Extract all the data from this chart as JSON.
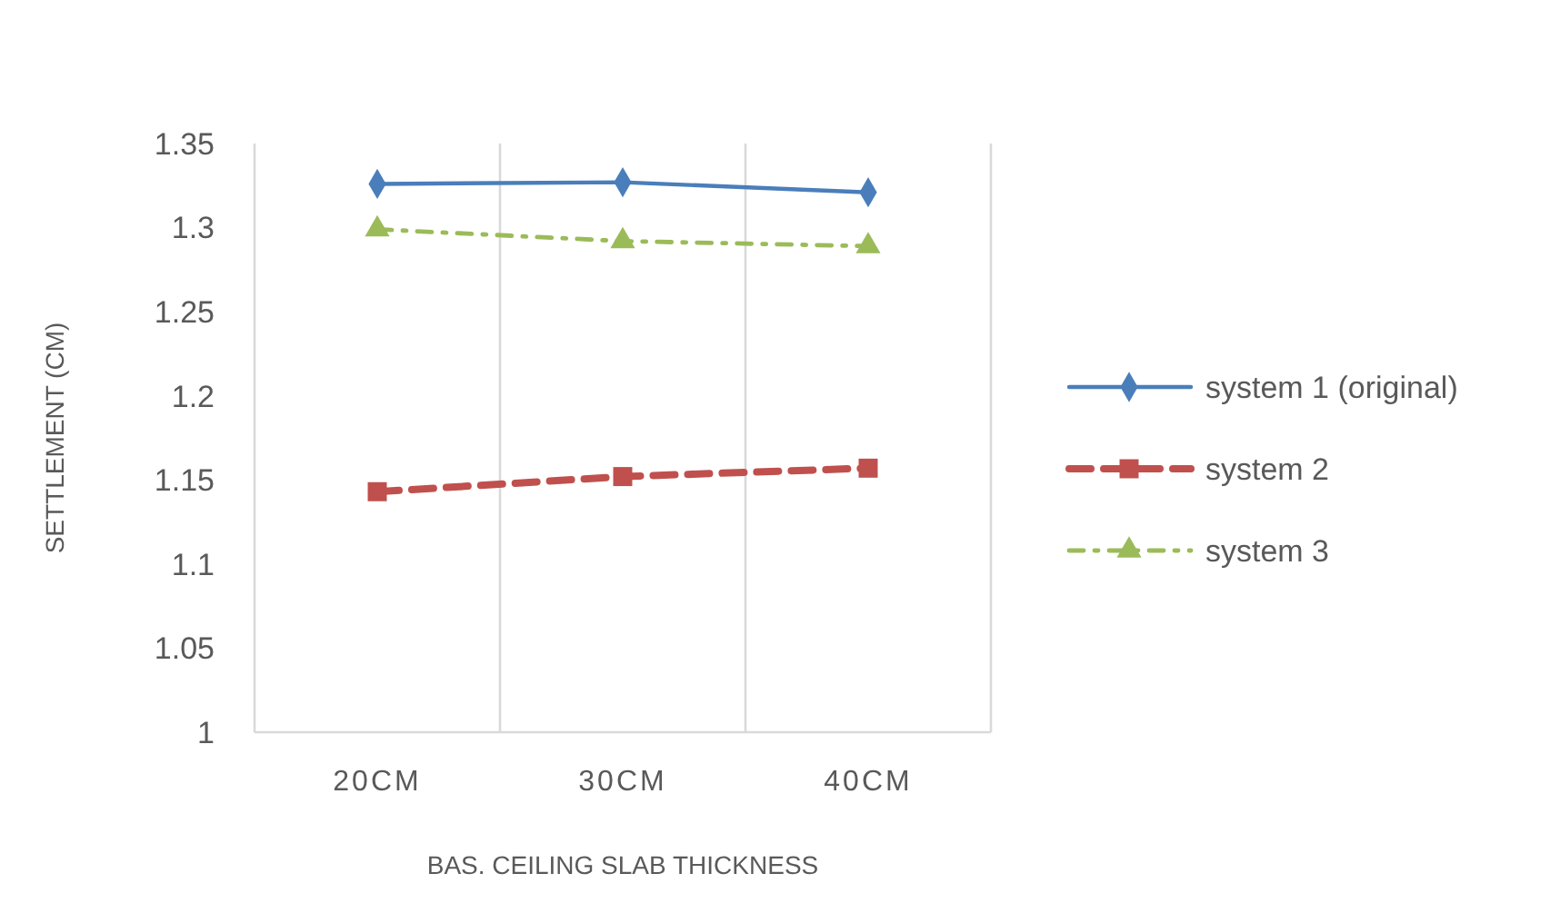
{
  "chart_data": {
    "type": "line",
    "xlabel": "BAS. CEILING SLAB THICKNESS",
    "ylabel": "SETTLEMENT (CM)",
    "categories": [
      "20CM",
      "30CM",
      "40CM"
    ],
    "series": [
      {
        "name": "system 1 (original)",
        "color": "#4a7ebb",
        "values": [
          1.326,
          1.327,
          1.321
        ],
        "marker": "diamond",
        "line_style": "solid"
      },
      {
        "name": "system 2",
        "color": "#c0504d",
        "values": [
          1.143,
          1.152,
          1.157
        ],
        "marker": "square",
        "line_style": "dashed"
      },
      {
        "name": "system 3",
        "color": "#9bbb59",
        "values": [
          1.299,
          1.292,
          1.289
        ],
        "marker": "triangle",
        "line_style": "dotted"
      }
    ],
    "ylim": [
      1,
      1.35
    ],
    "yticks": [
      1,
      1.05,
      1.1,
      1.15,
      1.2,
      1.25,
      1.3,
      1.35
    ],
    "grid": "x",
    "legend": "right"
  }
}
